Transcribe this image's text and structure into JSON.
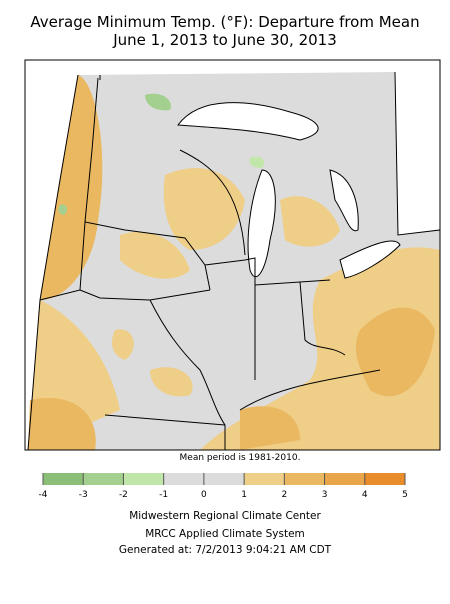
{
  "title": [
    "Average Minimum Temp. (°F): Departure from Mean",
    "June 1, 2013 to June 30, 2013"
  ],
  "note": "Mean period is 1981-2010.",
  "legend": {
    "ticks": [
      -4,
      -3,
      -2,
      -1,
      0,
      1,
      2,
      3,
      4,
      5
    ],
    "colors": [
      "#8bbf78",
      "#a3d08e",
      "#c0e6a9",
      "#dcdcdc",
      "#dcdcdc",
      "#efce87",
      "#ebb862",
      "#e9a54a",
      "#e98c2b"
    ]
  },
  "footer": [
    "Midwestern Regional Climate Center",
    "MRCC Applied Climate System",
    "Generated at: 7/2/2013 9:04:21 AM CDT"
  ]
}
